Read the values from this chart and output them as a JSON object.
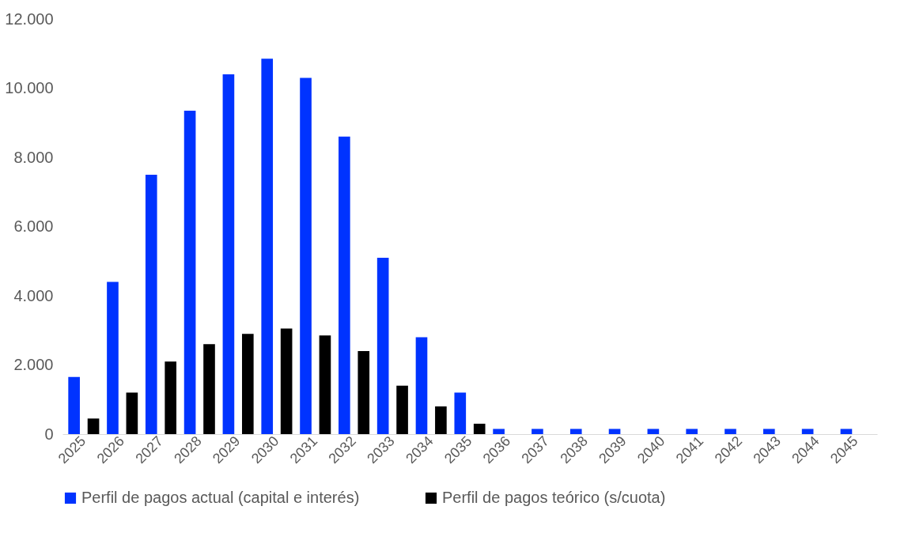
{
  "chart_data": {
    "type": "bar",
    "categories": [
      "2025",
      "2026",
      "2027",
      "2028",
      "2029",
      "2030",
      "2031",
      "2032",
      "2033",
      "2034",
      "2035",
      "2036",
      "2037",
      "2038",
      "2039",
      "2040",
      "2041",
      "2042",
      "2043",
      "2044",
      "2045"
    ],
    "series": [
      {
        "name": "Perfil de pagos actual (capital e interés)",
        "color": "#0033ff",
        "values": [
          1650,
          4400,
          7500,
          9350,
          10400,
          10850,
          10300,
          8600,
          5100,
          2800,
          1200,
          150,
          150,
          150,
          150,
          150,
          150,
          150,
          150,
          150,
          150
        ]
      },
      {
        "name": "Perfil de pagos teórico (s/cuota)",
        "color": "#000000",
        "values": [
          450,
          1200,
          2100,
          2600,
          2900,
          3050,
          2850,
          2400,
          1400,
          800,
          300,
          null,
          null,
          null,
          null,
          null,
          null,
          null,
          null,
          null,
          null
        ]
      }
    ],
    "ylim": [
      0,
      12000
    ],
    "yticks": [
      {
        "value": 0,
        "label": "0"
      },
      {
        "value": 2000,
        "label": "2.000"
      },
      {
        "value": 4000,
        "label": "4.000"
      },
      {
        "value": 6000,
        "label": "6.000"
      },
      {
        "value": 8000,
        "label": "8.000"
      },
      {
        "value": 10000,
        "label": "10.000"
      },
      {
        "value": 12000,
        "label": "12.000"
      }
    ],
    "grid": false,
    "legend": "bottom"
  }
}
